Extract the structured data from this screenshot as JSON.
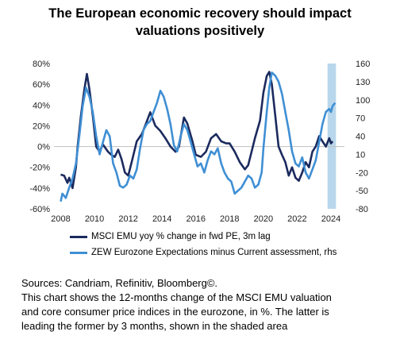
{
  "title": {
    "line1": "The European economic recovery should impact",
    "line2": "valuations positively"
  },
  "chart_data": {
    "type": "line",
    "xlim": [
      2007.6,
      2024.8
    ],
    "x_ticks": [
      "2008",
      "2010",
      "2012",
      "2014",
      "2016",
      "2018",
      "2020",
      "2022",
      "2024"
    ],
    "left_axis": {
      "ylim": [
        -60,
        80
      ],
      "ticks": [
        "80%",
        "60%",
        "40%",
        "20%",
        "0%",
        "-20%",
        "-40%",
        "-60%"
      ]
    },
    "right_axis": {
      "ylim": [
        -80,
        160
      ],
      "ticks": [
        "160",
        "130",
        "100",
        "70",
        "40",
        "10",
        "-20",
        "-50",
        "-80"
      ]
    },
    "shaded_region": [
      2023.8,
      2024.3
    ],
    "grid": false,
    "legend_position": "bottom",
    "series": [
      {
        "name": "MSCI EMU yoy % change in fwd PE, 3m lag",
        "axis": "left",
        "color": "#1b2a5e",
        "points": [
          [
            2008.0,
            -27
          ],
          [
            2008.2,
            -28
          ],
          [
            2008.4,
            -35
          ],
          [
            2008.5,
            -30
          ],
          [
            2008.7,
            -40
          ],
          [
            2008.9,
            -20
          ],
          [
            2009.0,
            0
          ],
          [
            2009.2,
            30
          ],
          [
            2009.4,
            55
          ],
          [
            2009.55,
            70
          ],
          [
            2009.7,
            55
          ],
          [
            2009.9,
            30
          ],
          [
            2010.1,
            0
          ],
          [
            2010.3,
            -5
          ],
          [
            2010.5,
            2
          ],
          [
            2010.8,
            -5
          ],
          [
            2011.0,
            -8
          ],
          [
            2011.2,
            -10
          ],
          [
            2011.4,
            -3
          ],
          [
            2011.6,
            -12
          ],
          [
            2011.8,
            -25
          ],
          [
            2012.0,
            -28
          ],
          [
            2012.2,
            -15
          ],
          [
            2012.5,
            5
          ],
          [
            2012.8,
            12
          ],
          [
            2013.0,
            20
          ],
          [
            2013.3,
            33
          ],
          [
            2013.6,
            20
          ],
          [
            2013.9,
            15
          ],
          [
            2014.2,
            8
          ],
          [
            2014.5,
            0
          ],
          [
            2014.8,
            -5
          ],
          [
            2015.0,
            0
          ],
          [
            2015.3,
            28
          ],
          [
            2015.5,
            22
          ],
          [
            2015.8,
            5
          ],
          [
            2016.0,
            -8
          ],
          [
            2016.3,
            -10
          ],
          [
            2016.6,
            -5
          ],
          [
            2016.9,
            8
          ],
          [
            2017.2,
            12
          ],
          [
            2017.5,
            5
          ],
          [
            2017.8,
            3
          ],
          [
            2018.0,
            3
          ],
          [
            2018.3,
            -5
          ],
          [
            2018.6,
            -15
          ],
          [
            2018.9,
            -22
          ],
          [
            2019.1,
            -18
          ],
          [
            2019.3,
            -5
          ],
          [
            2019.5,
            8
          ],
          [
            2019.8,
            25
          ],
          [
            2020.0,
            52
          ],
          [
            2020.2,
            68
          ],
          [
            2020.35,
            72
          ],
          [
            2020.5,
            60
          ],
          [
            2020.7,
            30
          ],
          [
            2020.9,
            0
          ],
          [
            2021.1,
            -8
          ],
          [
            2021.3,
            -15
          ],
          [
            2021.5,
            -28
          ],
          [
            2021.7,
            -20
          ],
          [
            2021.9,
            -30
          ],
          [
            2022.1,
            -33
          ],
          [
            2022.3,
            -25
          ],
          [
            2022.5,
            -15
          ],
          [
            2022.7,
            -20
          ],
          [
            2022.9,
            -5
          ],
          [
            2023.1,
            0
          ],
          [
            2023.3,
            10
          ],
          [
            2023.5,
            5
          ],
          [
            2023.7,
            0
          ],
          [
            2023.9,
            8
          ],
          [
            2024.0,
            3
          ],
          [
            2024.1,
            5
          ]
        ]
      },
      {
        "name": "ZEW Eurozone Expectations minus Current assessment, rhs",
        "axis": "right",
        "color": "#3f8fd4",
        "points": [
          [
            2008.0,
            -68
          ],
          [
            2008.1,
            -55
          ],
          [
            2008.3,
            -62
          ],
          [
            2008.5,
            -45
          ],
          [
            2008.7,
            -30
          ],
          [
            2008.9,
            -5
          ],
          [
            2009.1,
            40
          ],
          [
            2009.3,
            90
          ],
          [
            2009.5,
            120
          ],
          [
            2009.7,
            105
          ],
          [
            2009.9,
            80
          ],
          [
            2010.1,
            40
          ],
          [
            2010.3,
            10
          ],
          [
            2010.5,
            30
          ],
          [
            2010.7,
            50
          ],
          [
            2010.9,
            40
          ],
          [
            2011.1,
            -5
          ],
          [
            2011.3,
            -20
          ],
          [
            2011.5,
            -42
          ],
          [
            2011.7,
            -45
          ],
          [
            2011.9,
            -40
          ],
          [
            2012.1,
            -25
          ],
          [
            2012.3,
            -30
          ],
          [
            2012.5,
            -15
          ],
          [
            2012.7,
            20
          ],
          [
            2012.9,
            50
          ],
          [
            2013.1,
            60
          ],
          [
            2013.3,
            65
          ],
          [
            2013.5,
            80
          ],
          [
            2013.7,
            95
          ],
          [
            2013.9,
            115
          ],
          [
            2014.1,
            105
          ],
          [
            2014.3,
            85
          ],
          [
            2014.5,
            60
          ],
          [
            2014.7,
            25
          ],
          [
            2014.9,
            15
          ],
          [
            2015.1,
            40
          ],
          [
            2015.3,
            60
          ],
          [
            2015.5,
            50
          ],
          [
            2015.7,
            30
          ],
          [
            2015.9,
            10
          ],
          [
            2016.1,
            -10
          ],
          [
            2016.3,
            -5
          ],
          [
            2016.5,
            -20
          ],
          [
            2016.7,
            0
          ],
          [
            2016.9,
            15
          ],
          [
            2017.1,
            10
          ],
          [
            2017.3,
            20
          ],
          [
            2017.5,
            -5
          ],
          [
            2017.7,
            -20
          ],
          [
            2017.9,
            -30
          ],
          [
            2018.1,
            -35
          ],
          [
            2018.3,
            -55
          ],
          [
            2018.5,
            -50
          ],
          [
            2018.7,
            -45
          ],
          [
            2018.9,
            -35
          ],
          [
            2019.1,
            -25
          ],
          [
            2019.3,
            -30
          ],
          [
            2019.5,
            -45
          ],
          [
            2019.7,
            -40
          ],
          [
            2019.9,
            -20
          ],
          [
            2020.0,
            20
          ],
          [
            2020.2,
            80
          ],
          [
            2020.35,
            120
          ],
          [
            2020.5,
            145
          ],
          [
            2020.7,
            140
          ],
          [
            2020.9,
            130
          ],
          [
            2021.1,
            110
          ],
          [
            2021.3,
            80
          ],
          [
            2021.5,
            50
          ],
          [
            2021.7,
            15
          ],
          [
            2021.9,
            -5
          ],
          [
            2022.1,
            -10
          ],
          [
            2022.3,
            5
          ],
          [
            2022.5,
            -20
          ],
          [
            2022.7,
            -30
          ],
          [
            2022.9,
            -15
          ],
          [
            2023.1,
            0
          ],
          [
            2023.3,
            30
          ],
          [
            2023.5,
            60
          ],
          [
            2023.7,
            80
          ],
          [
            2023.9,
            85
          ],
          [
            2024.0,
            80
          ],
          [
            2024.1,
            90
          ],
          [
            2024.25,
            95
          ]
        ]
      }
    ]
  },
  "note": {
    "sources": "Sources: Candriam, Refinitiv, Bloomberg©.",
    "line1": "This chart shows the 12-months change of the MSCI EMU valuation",
    "line2": "and core consumer price indices in the eurozone, in %. The latter is",
    "line3": "leading the former by 3 months, shown in the shaded area"
  }
}
